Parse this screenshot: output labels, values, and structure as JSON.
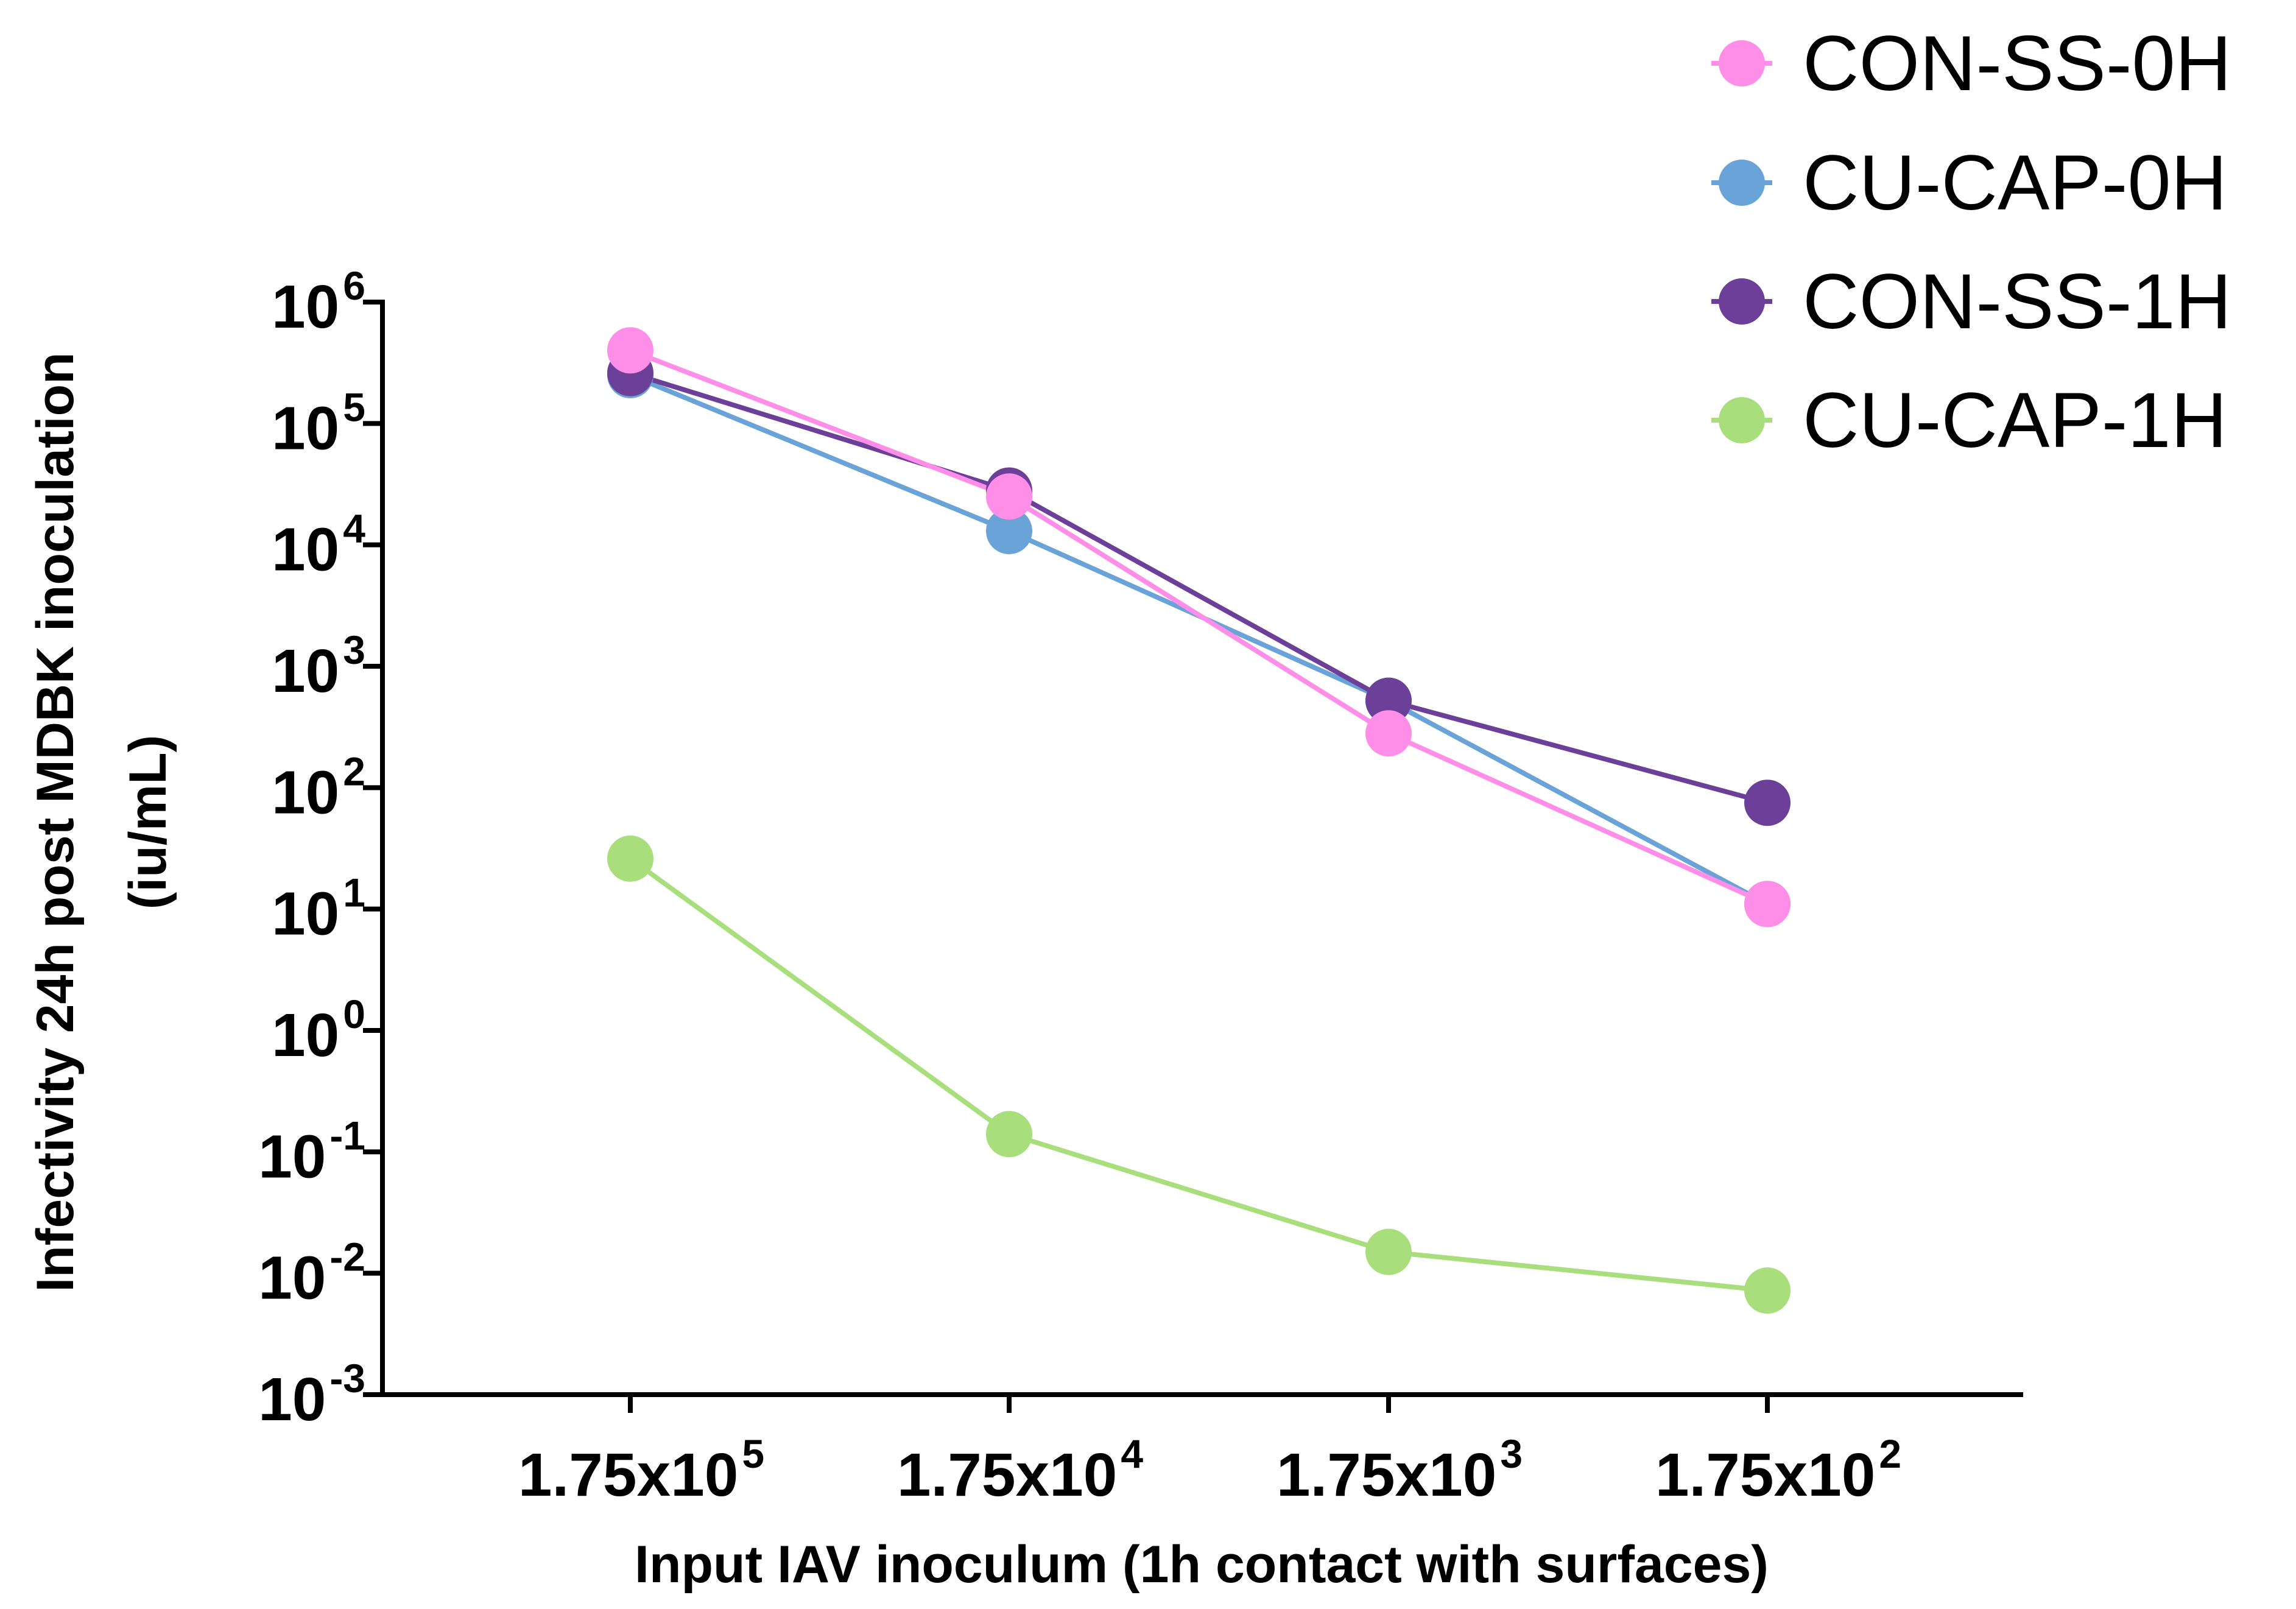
{
  "chart_data": {
    "type": "line",
    "title": "",
    "xlabel": "Input IAV inoculum (1h contact with surfaces)",
    "ylabel": "Infectivity 24h post MDBK inoculation",
    "ylabel_unit": "(iu/mL)",
    "y_scale": "log10",
    "ylim_exponent": [
      -3,
      6
    ],
    "y_ticks": [
      {
        "base": "10",
        "exp": "6"
      },
      {
        "base": "10",
        "exp": "5"
      },
      {
        "base": "10",
        "exp": "4"
      },
      {
        "base": "10",
        "exp": "3"
      },
      {
        "base": "10",
        "exp": "2"
      },
      {
        "base": "10",
        "exp": "1"
      },
      {
        "base": "10",
        "exp": "0"
      },
      {
        "base": "10",
        "exp": "-1"
      },
      {
        "base": "10",
        "exp": "-2"
      },
      {
        "base": "10",
        "exp": "-3"
      }
    ],
    "categories": [
      {
        "base": "1.75x10",
        "exp": "5"
      },
      {
        "base": "1.75x10",
        "exp": "4"
      },
      {
        "base": "1.75x10",
        "exp": "3"
      },
      {
        "base": "1.75x10",
        "exp": "2"
      }
    ],
    "series": [
      {
        "name": "CON-SS-0H",
        "color": "#ff8ee8",
        "values": [
          400000,
          25000,
          280,
          11
        ]
      },
      {
        "name": "CU-CAP-0H",
        "color": "#6aa3d8",
        "values": [
          250000,
          13000,
          520,
          11
        ]
      },
      {
        "name": "CON-SS-1H",
        "color": "#6c3f98",
        "values": [
          260000,
          28000,
          520,
          75
        ]
      },
      {
        "name": "CU-CAP-1H",
        "color": "#a8df7c",
        "values": [
          26,
          0.14,
          0.015,
          0.0072
        ]
      }
    ],
    "legend_position": "top-right"
  }
}
